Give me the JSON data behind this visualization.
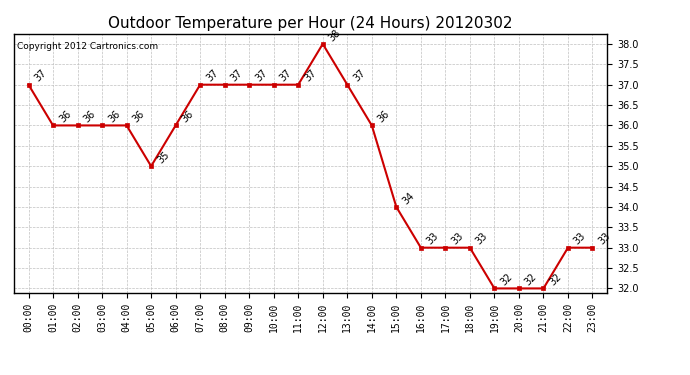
{
  "title": "Outdoor Temperature per Hour (24 Hours) 20120302",
  "copyright_text": "Copyright 2012 Cartronics.com",
  "hours": [
    "00:00",
    "01:00",
    "02:00",
    "03:00",
    "04:00",
    "05:00",
    "06:00",
    "07:00",
    "08:00",
    "09:00",
    "10:00",
    "11:00",
    "12:00",
    "13:00",
    "14:00",
    "15:00",
    "16:00",
    "17:00",
    "18:00",
    "19:00",
    "20:00",
    "21:00",
    "22:00",
    "23:00"
  ],
  "temps": [
    37,
    36,
    36,
    36,
    36,
    35,
    36,
    37,
    37,
    37,
    37,
    37,
    38,
    37,
    36,
    34,
    33,
    33,
    33,
    32,
    32,
    32,
    33,
    33
  ],
  "ylim_min": 31.9,
  "ylim_max": 38.25,
  "yticks": [
    32.0,
    32.5,
    33.0,
    33.5,
    34.0,
    34.5,
    35.0,
    35.5,
    36.0,
    36.5,
    37.0,
    37.5,
    38.0
  ],
  "line_color": "#cc0000",
  "marker_color": "#cc0000",
  "bg_color": "#ffffff",
  "grid_color": "#c0c0c0",
  "title_fontsize": 11,
  "tick_fontsize": 7,
  "annotation_fontsize": 7,
  "copyright_fontsize": 6.5
}
